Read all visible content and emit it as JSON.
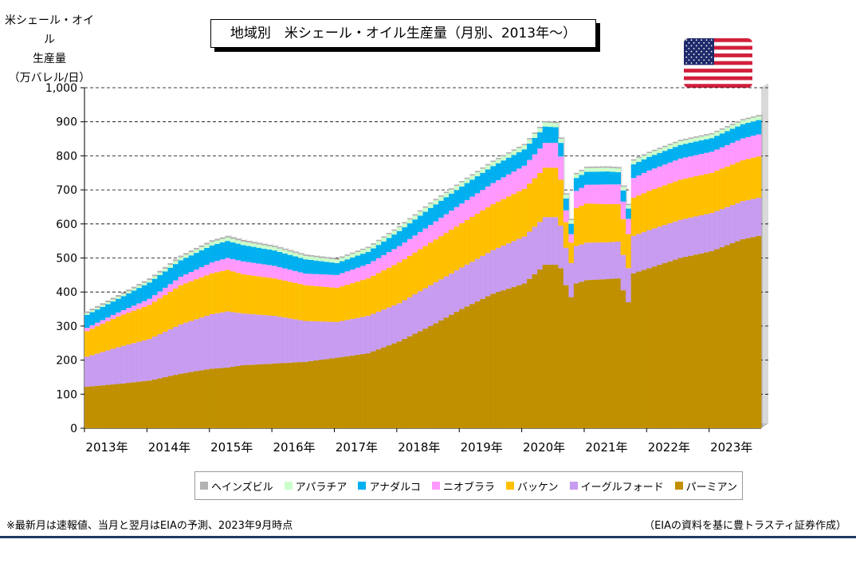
{
  "unit_label": {
    "line1": "米シェール・オイル",
    "line2": "生産量",
    "line3": "（万バレル/日）"
  },
  "title": "地域別　米シェール・オイル生産量（月別、2013年～）",
  "flag": {
    "icon": "us-flag-icon"
  },
  "notes": {
    "left": "※最新月は速報値、当月と翌月はEIAの予測、2023年9月時点",
    "right": "（EIAの資料を基に豊トラスティ証券作成）"
  },
  "colors": {
    "plot_background": "#ffffff",
    "gridline": "#000000",
    "bottom_rule": "#1f3864"
  },
  "chart_data": {
    "type": "bar",
    "stacked": true,
    "x_start": "2013-01",
    "x_end": "2023-10",
    "ylim": [
      0,
      1000
    ],
    "y_ticks": [
      "0",
      "100",
      "200",
      "300",
      "400",
      "500",
      "600",
      "700",
      "800",
      "900",
      "1,000"
    ],
    "x_ticks": [
      "2013年",
      "2014年",
      "2015年",
      "2016年",
      "2017年",
      "2018年",
      "2019年",
      "2020年",
      "2021年",
      "2022年",
      "2023年"
    ],
    "grid": "horizontal dashed",
    "legend_position": "bottom",
    "series": [
      {
        "name": "パーミアン",
        "color": "#c09000",
        "anchors": [
          [
            0,
            122
          ],
          [
            6,
            130
          ],
          [
            12,
            140
          ],
          [
            18,
            160
          ],
          [
            24,
            175
          ],
          [
            27,
            178
          ],
          [
            30,
            185
          ],
          [
            36,
            190
          ],
          [
            42,
            195
          ],
          [
            48,
            207
          ],
          [
            54,
            220
          ],
          [
            60,
            255
          ],
          [
            66,
            300
          ],
          [
            72,
            350
          ],
          [
            78,
            395
          ],
          [
            84,
            425
          ],
          [
            88,
            480
          ],
          [
            90,
            480
          ],
          [
            91,
            470
          ],
          [
            92,
            420
          ],
          [
            93,
            385
          ],
          [
            94,
            425
          ],
          [
            96,
            435
          ],
          [
            100,
            438
          ],
          [
            102,
            440
          ],
          [
            104,
            370
          ],
          [
            105,
            455
          ],
          [
            108,
            470
          ],
          [
            114,
            500
          ],
          [
            120,
            520
          ],
          [
            126,
            555
          ],
          [
            130,
            568
          ],
          [
            136,
            575
          ],
          [
            140,
            578
          ],
          [
            141,
            578
          ],
          [
            142,
            578
          ]
        ]
      },
      {
        "name": "イーグルフォード",
        "color": "#c89cf0",
        "anchors": [
          [
            0,
            88
          ],
          [
            6,
            108
          ],
          [
            12,
            122
          ],
          [
            18,
            145
          ],
          [
            24,
            160
          ],
          [
            27,
            165
          ],
          [
            30,
            152
          ],
          [
            36,
            140
          ],
          [
            42,
            120
          ],
          [
            48,
            105
          ],
          [
            54,
            110
          ],
          [
            60,
            112
          ],
          [
            66,
            120
          ],
          [
            72,
            122
          ],
          [
            78,
            128
          ],
          [
            84,
            138
          ],
          [
            88,
            140
          ],
          [
            90,
            140
          ],
          [
            91,
            125
          ],
          [
            92,
            110
          ],
          [
            93,
            100
          ],
          [
            94,
            110
          ],
          [
            96,
            110
          ],
          [
            100,
            108
          ],
          [
            102,
            108
          ],
          [
            104,
            100
          ],
          [
            105,
            110
          ],
          [
            108,
            112
          ],
          [
            114,
            112
          ],
          [
            120,
            112
          ],
          [
            126,
            112
          ],
          [
            130,
            112
          ],
          [
            136,
            112
          ],
          [
            140,
            110
          ],
          [
            141,
            108
          ],
          [
            142,
            108
          ]
        ]
      },
      {
        "name": "バッケン",
        "color": "#ffc000",
        "anchors": [
          [
            0,
            75
          ],
          [
            6,
            90
          ],
          [
            12,
            100
          ],
          [
            18,
            115
          ],
          [
            24,
            120
          ],
          [
            27,
            122
          ],
          [
            30,
            115
          ],
          [
            36,
            110
          ],
          [
            42,
            105
          ],
          [
            48,
            100
          ],
          [
            54,
            110
          ],
          [
            60,
            120
          ],
          [
            66,
            125
          ],
          [
            72,
            130
          ],
          [
            78,
            135
          ],
          [
            84,
            140
          ],
          [
            88,
            145
          ],
          [
            90,
            145
          ],
          [
            91,
            135
          ],
          [
            92,
            75
          ],
          [
            93,
            60
          ],
          [
            94,
            112
          ],
          [
            96,
            115
          ],
          [
            100,
            112
          ],
          [
            102,
            110
          ],
          [
            104,
            100
          ],
          [
            105,
            112
          ],
          [
            108,
            115
          ],
          [
            114,
            118
          ],
          [
            120,
            118
          ],
          [
            126,
            120
          ],
          [
            130,
            122
          ],
          [
            136,
            125
          ],
          [
            140,
            125
          ],
          [
            141,
            125
          ],
          [
            142,
            125
          ]
        ]
      },
      {
        "name": "ニオブララ",
        "color": "#ff99ff",
        "anchors": [
          [
            0,
            10
          ],
          [
            6,
            12
          ],
          [
            12,
            18
          ],
          [
            18,
            25
          ],
          [
            24,
            32
          ],
          [
            27,
            35
          ],
          [
            30,
            38
          ],
          [
            36,
            37
          ],
          [
            42,
            34
          ],
          [
            48,
            38
          ],
          [
            54,
            42
          ],
          [
            60,
            48
          ],
          [
            66,
            52
          ],
          [
            72,
            58
          ],
          [
            78,
            62
          ],
          [
            84,
            68
          ],
          [
            88,
            73
          ],
          [
            90,
            73
          ],
          [
            91,
            68
          ],
          [
            92,
            35
          ],
          [
            93,
            25
          ],
          [
            94,
            50
          ],
          [
            96,
            55
          ],
          [
            100,
            58
          ],
          [
            102,
            58
          ],
          [
            104,
            45
          ],
          [
            105,
            58
          ],
          [
            108,
            60
          ],
          [
            114,
            62
          ],
          [
            120,
            62
          ],
          [
            126,
            64
          ],
          [
            130,
            65
          ],
          [
            136,
            66
          ],
          [
            140,
            66
          ],
          [
            141,
            66
          ],
          [
            142,
            66
          ]
        ]
      },
      {
        "name": "アナダルコ",
        "color": "#00b0f0",
        "anchors": [
          [
            0,
            38
          ],
          [
            6,
            40
          ],
          [
            12,
            48
          ],
          [
            18,
            48
          ],
          [
            24,
            50
          ],
          [
            27,
            50
          ],
          [
            30,
            48
          ],
          [
            36,
            45
          ],
          [
            42,
            42
          ],
          [
            48,
            35
          ],
          [
            54,
            36
          ],
          [
            60,
            44
          ],
          [
            66,
            50
          ],
          [
            72,
            50
          ],
          [
            78,
            50
          ],
          [
            84,
            48
          ],
          [
            88,
            48
          ],
          [
            90,
            46
          ],
          [
            91,
            40
          ],
          [
            92,
            35
          ],
          [
            93,
            30
          ],
          [
            94,
            38
          ],
          [
            96,
            38
          ],
          [
            100,
            38
          ],
          [
            102,
            36
          ],
          [
            104,
            30
          ],
          [
            105,
            40
          ],
          [
            108,
            40
          ],
          [
            114,
            40
          ],
          [
            120,
            40
          ],
          [
            126,
            42
          ],
          [
            130,
            42
          ],
          [
            136,
            42
          ],
          [
            140,
            42
          ],
          [
            141,
            42
          ],
          [
            142,
            42
          ]
        ]
      },
      {
        "name": "アパラチア",
        "color": "#ccffcc",
        "anchors": [
          [
            0,
            5
          ],
          [
            6,
            6
          ],
          [
            12,
            7
          ],
          [
            18,
            9
          ],
          [
            24,
            10
          ],
          [
            27,
            10
          ],
          [
            30,
            10
          ],
          [
            36,
            10
          ],
          [
            42,
            10
          ],
          [
            48,
            10
          ],
          [
            54,
            11
          ],
          [
            60,
            11
          ],
          [
            66,
            12
          ],
          [
            72,
            12
          ],
          [
            78,
            12
          ],
          [
            84,
            12
          ],
          [
            88,
            12
          ],
          [
            90,
            12
          ],
          [
            91,
            12
          ],
          [
            92,
            11
          ],
          [
            93,
            11
          ],
          [
            94,
            11
          ],
          [
            96,
            11
          ],
          [
            100,
            11
          ],
          [
            102,
            11
          ],
          [
            104,
            10
          ],
          [
            105,
            11
          ],
          [
            108,
            11
          ],
          [
            114,
            11
          ],
          [
            120,
            11
          ],
          [
            126,
            11
          ],
          [
            130,
            11
          ],
          [
            136,
            11
          ],
          [
            140,
            11
          ],
          [
            141,
            11
          ],
          [
            142,
            11
          ]
        ]
      },
      {
        "name": "ヘインズビル",
        "color": "#b2b2b2",
        "anchors": [
          [
            0,
            5
          ],
          [
            6,
            5
          ],
          [
            12,
            5
          ],
          [
            18,
            5
          ],
          [
            24,
            5
          ],
          [
            27,
            5
          ],
          [
            30,
            5
          ],
          [
            36,
            4
          ],
          [
            42,
            4
          ],
          [
            48,
            4
          ],
          [
            54,
            4
          ],
          [
            60,
            4
          ],
          [
            66,
            4
          ],
          [
            72,
            4
          ],
          [
            78,
            4
          ],
          [
            84,
            4
          ],
          [
            88,
            4
          ],
          [
            90,
            4
          ],
          [
            91,
            4
          ],
          [
            92,
            4
          ],
          [
            93,
            4
          ],
          [
            94,
            4
          ],
          [
            96,
            4
          ],
          [
            100,
            4
          ],
          [
            102,
            4
          ],
          [
            104,
            4
          ],
          [
            105,
            4
          ],
          [
            108,
            4
          ],
          [
            114,
            4
          ],
          [
            120,
            4
          ],
          [
            126,
            4
          ],
          [
            130,
            4
          ],
          [
            136,
            4
          ],
          [
            140,
            4
          ],
          [
            141,
            4
          ],
          [
            142,
            4
          ]
        ]
      }
    ]
  }
}
